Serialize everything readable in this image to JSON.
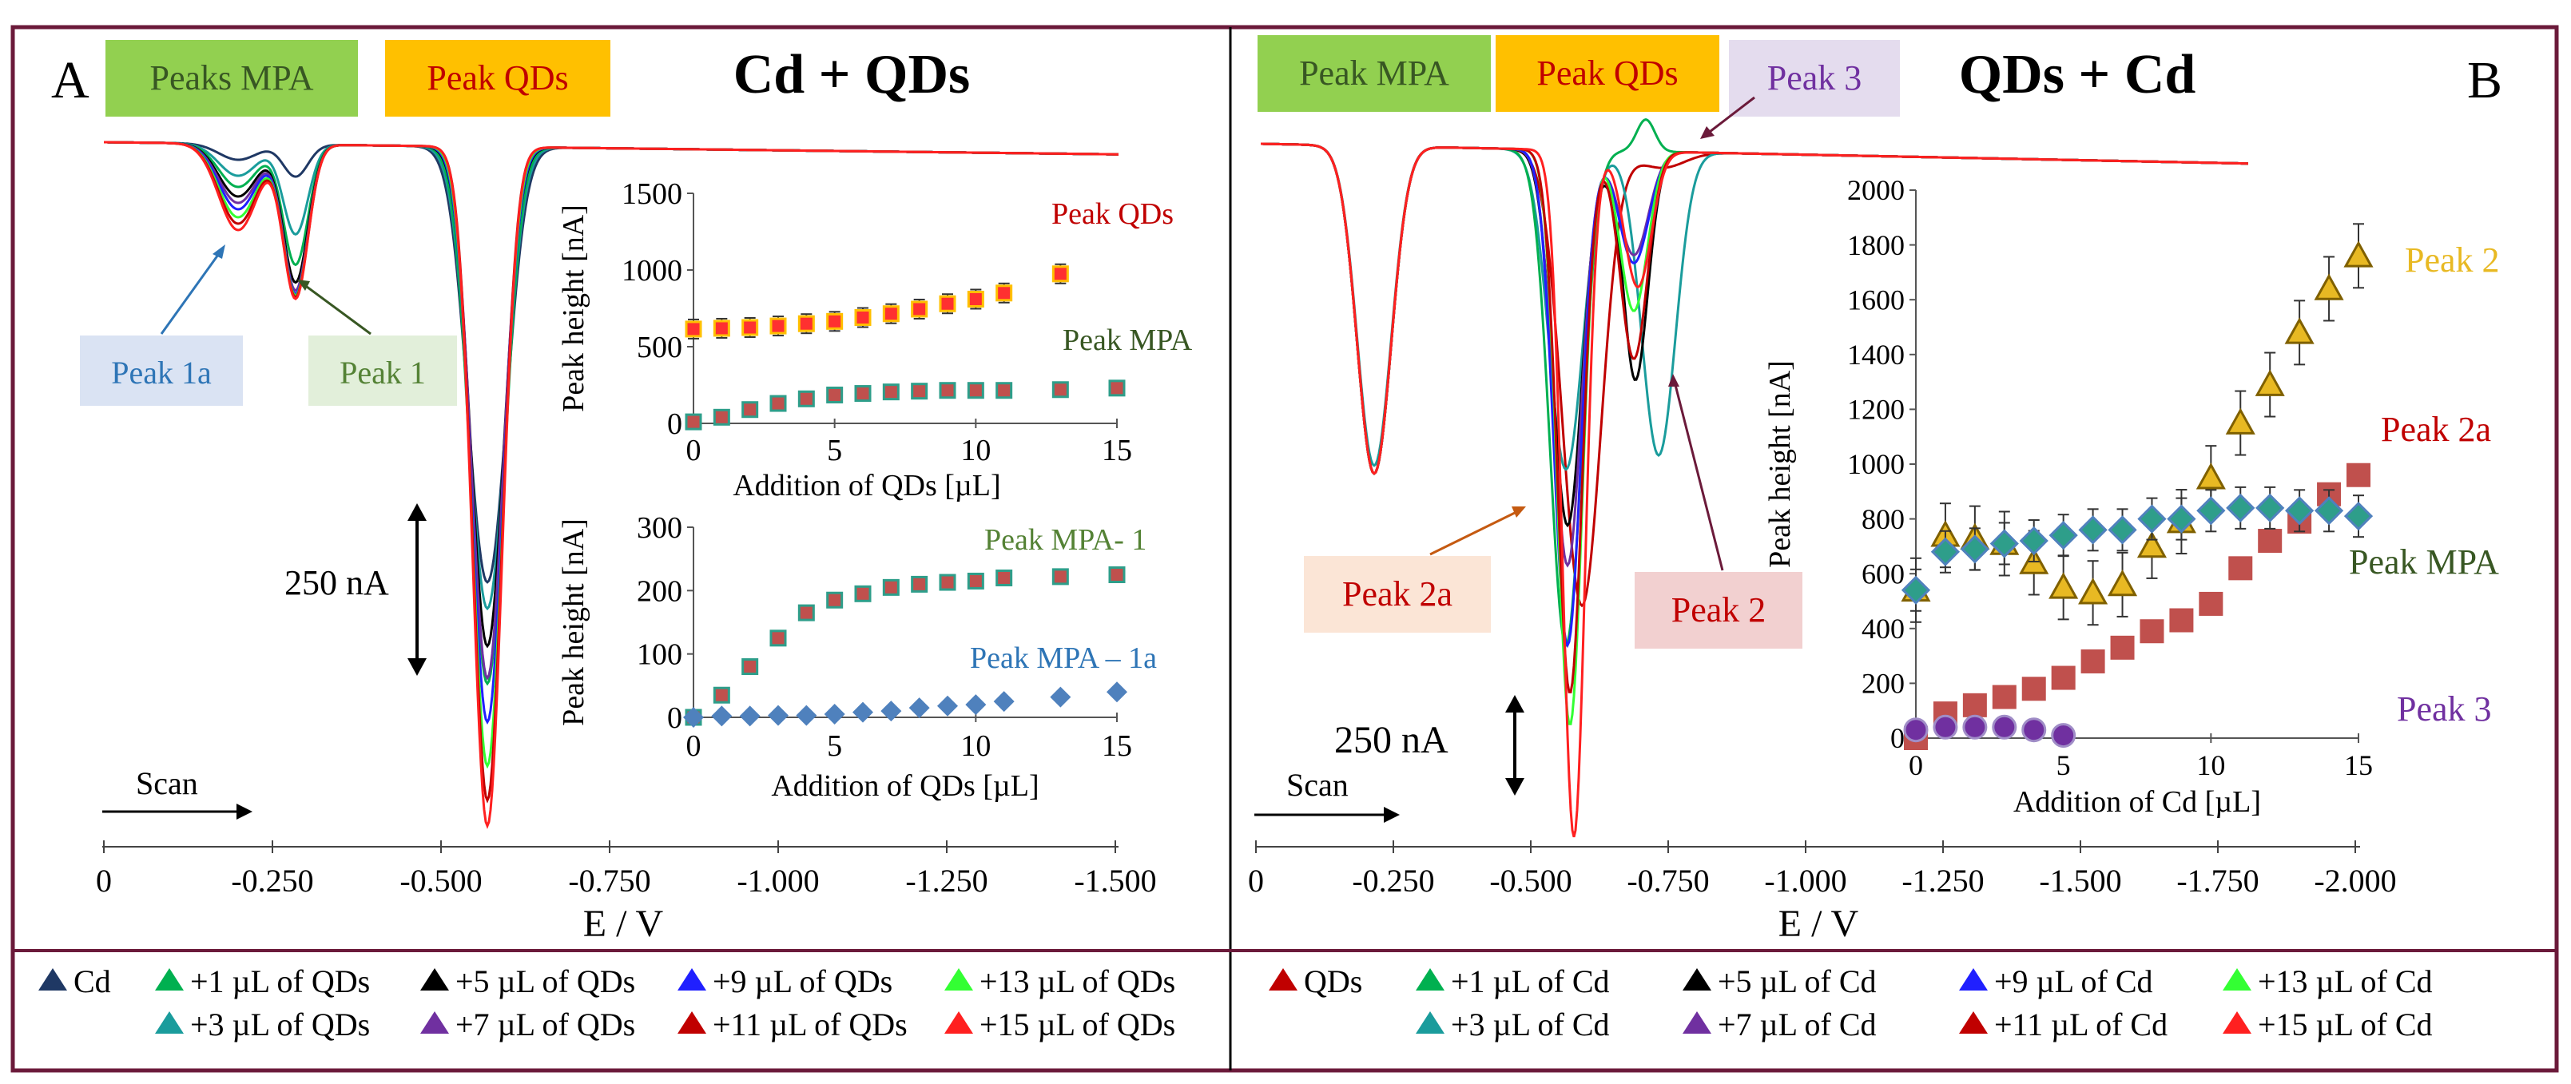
{
  "panels": {
    "a": {
      "letter": "A",
      "title": "Cd + QDs",
      "tag_mpa": "Peaks MPA",
      "tag_qds": "Peak QDs",
      "label_peak1a": "Peak 1a",
      "label_peak1": "Peak 1",
      "scale": "250 nA",
      "scan": "Scan",
      "xlabel": "E / V",
      "xticks": [
        "0",
        "-0.250",
        "-0.500",
        "-0.750",
        "-1.000",
        "-1.250",
        "-1.500"
      ],
      "legend_row1": [
        "Cd",
        "+1 µL of QDs",
        "+5 µL of QDs",
        "+9 µL of QDs",
        "+13 µL of QDs"
      ],
      "legend_row2": [
        "+3 µL of QDs",
        "+7 µL of QDs",
        "+11 µL of QDs",
        "+15 µL of QDs"
      ]
    },
    "b": {
      "letter": "B",
      "title": "QDs + Cd",
      "tag_mpa": "Peak MPA",
      "tag_qds": "Peak QDs",
      "tag_p3": "Peak 3",
      "label_peak2a": "Peak 2a",
      "label_peak2": "Peak 2",
      "scale": "250 nA",
      "scan": "Scan",
      "xlabel": "E / V",
      "xticks": [
        "0",
        "-0.250",
        "-0.500",
        "-0.750",
        "-1.000",
        "-1.250",
        "-1.500",
        "-1.750",
        "-2.000"
      ],
      "legend_row1": [
        "QDs",
        "+1 µL of Cd",
        "+5 µL of Cd",
        "+9 µL of Cd",
        "+13 µL of Cd"
      ],
      "legend_row2": [
        "+3 µL of Cd",
        "+7 µL of Cd",
        "+11 µL of Cd",
        "+15 µL of Cd"
      ]
    }
  },
  "colors": {
    "cd": "#1f3864",
    "plus1": "#00b050",
    "plus5": "#000000",
    "plus9": "#2020ff",
    "plus13": "#33ff33",
    "plus3": "#1a9c9c",
    "plus7": "#7030a0",
    "plus11": "#c00000",
    "plus15": "#ff2020",
    "qds": "#c00000",
    "peak2": "#e8b923",
    "peak2a": "#c0504d",
    "mpa": "#2e9e8a",
    "peak3": "#7030a0",
    "insetMpaA": "#c0504d",
    "insetMpaA_face": "#2e9e8a",
    "diamond": "#4f81bd"
  },
  "chart_data": [
    {
      "id": "insetA1",
      "type": "scatter",
      "xlabel": "Addition of QDs [µL]",
      "ylabel": "Peak height [nA]",
      "xlim": [
        0,
        15
      ],
      "ylim": [
        0,
        1500
      ],
      "xticks": [
        0,
        5,
        10,
        15
      ],
      "yticks": [
        0,
        500,
        1000,
        1500
      ],
      "x": [
        0,
        1,
        2,
        3,
        4,
        5,
        6,
        7,
        8,
        9,
        10,
        11,
        13,
        15
      ],
      "series": [
        {
          "name": "Peak QDs",
          "values": [
            615,
            620,
            625,
            635,
            650,
            665,
            690,
            715,
            745,
            780,
            810,
            850,
            975,
            null
          ]
        },
        {
          "name": "Peak MPA",
          "values": [
            10,
            40,
            90,
            130,
            160,
            185,
            195,
            205,
            210,
            215,
            215,
            215,
            220,
            230
          ]
        }
      ]
    },
    {
      "id": "insetA2",
      "type": "scatter",
      "xlabel": "Addition of QDs [µL]",
      "ylabel": "Peak height [nA]",
      "xlim": [
        0,
        15
      ],
      "ylim": [
        0,
        300
      ],
      "xticks": [
        0,
        5,
        10,
        15
      ],
      "yticks": [
        0,
        100,
        200,
        300
      ],
      "x": [
        0,
        1,
        2,
        3,
        4,
        5,
        6,
        7,
        8,
        9,
        10,
        11,
        13,
        15
      ],
      "series": [
        {
          "name": "Peak MPA- 1",
          "values": [
            0,
            35,
            80,
            125,
            165,
            185,
            195,
            205,
            210,
            213,
            215,
            220,
            222,
            225
          ]
        },
        {
          "name": "Peak MPA – 1a",
          "values": [
            0,
            2,
            2,
            3,
            3,
            5,
            8,
            10,
            15,
            18,
            20,
            25,
            32,
            40
          ]
        }
      ]
    },
    {
      "id": "insetB",
      "type": "scatter",
      "xlabel": "Addition of Cd [µL]",
      "ylabel": "Peak height [nA]",
      "xlim": [
        0,
        15
      ],
      "ylim": [
        0,
        2000
      ],
      "xticks": [
        0,
        5,
        10,
        15
      ],
      "yticks": [
        0,
        200,
        400,
        600,
        800,
        1000,
        1200,
        1400,
        1600,
        1800,
        2000
      ],
      "x": [
        0,
        1,
        2,
        3,
        4,
        5,
        6,
        7,
        8,
        9,
        10,
        11,
        12,
        13,
        14,
        15
      ],
      "series": [
        {
          "name": "Peak 2",
          "values": [
            540,
            740,
            730,
            710,
            640,
            550,
            530,
            560,
            700,
            790,
            950,
            1150,
            1290,
            1480,
            1640,
            1760
          ]
        },
        {
          "name": "Peak 2a",
          "values": [
            0,
            90,
            120,
            150,
            180,
            220,
            280,
            330,
            390,
            430,
            490,
            620,
            720,
            790,
            890,
            960
          ]
        },
        {
          "name": "Peak MPA",
          "values": [
            540,
            680,
            690,
            710,
            720,
            740,
            760,
            760,
            800,
            800,
            830,
            840,
            840,
            830,
            830,
            810
          ]
        },
        {
          "name": "Peak 3",
          "values": [
            30,
            40,
            40,
            40,
            30,
            10,
            null,
            null,
            null,
            null,
            null,
            null,
            null,
            null,
            null,
            null
          ]
        }
      ]
    }
  ]
}
